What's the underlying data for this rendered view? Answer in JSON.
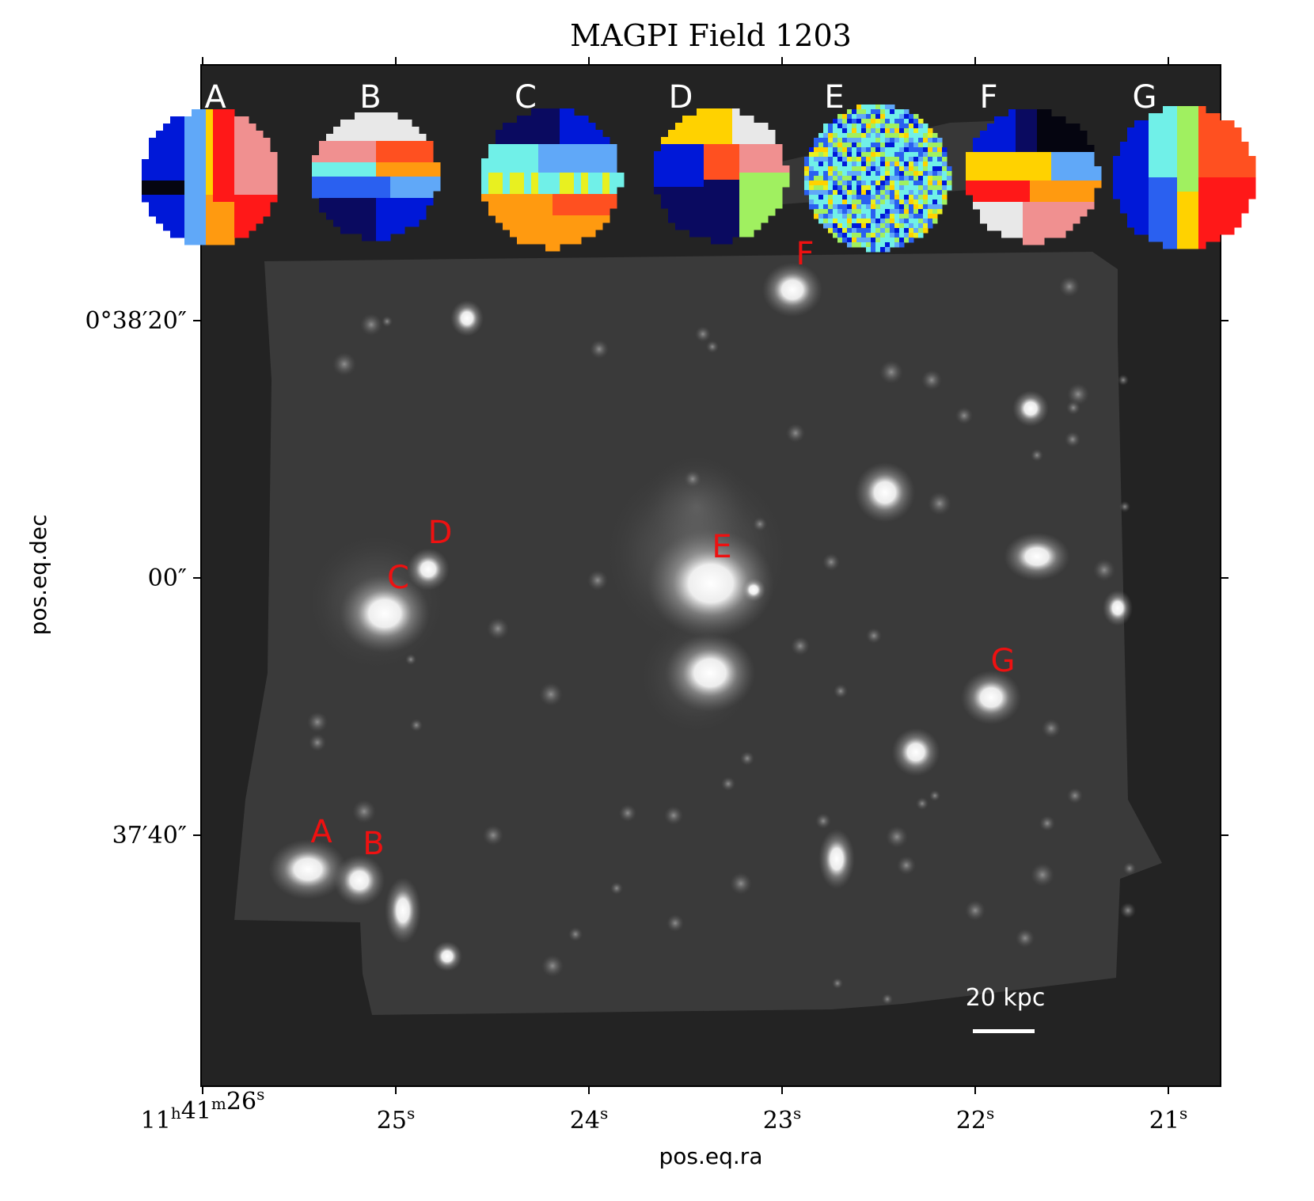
{
  "title": "MAGPI Field 1203",
  "xlabel": "pos.eq.ra",
  "ylabel": "pos.eq.dec",
  "ra_ticks": [
    {
      "main": "11",
      "h": "h",
      "m_val": "41",
      "m": "m",
      "s_val": "26",
      "s": "s"
    },
    {
      "s_val": "25",
      "s": "s"
    },
    {
      "s_val": "24",
      "s": "s"
    },
    {
      "s_val": "23",
      "s": "s"
    },
    {
      "s_val": "22",
      "s": "s"
    },
    {
      "s_val": "21",
      "s": "s"
    }
  ],
  "dec_ticks": [
    "0°38′20″",
    "00″",
    "37′40″"
  ],
  "scale_bar_label": "20 kpc",
  "galaxy_labels": [
    "A",
    "B",
    "C",
    "D",
    "E",
    "F",
    "G"
  ],
  "map_labels": [
    "A",
    "B",
    "C",
    "D",
    "E",
    "F",
    "G"
  ],
  "colors": {
    "frame_bg": "#232323",
    "label_red": "#ee1111",
    "map_label": "#ffffff",
    "scale_bar": "#ffffff"
  },
  "palette": [
    "#0018d8",
    "#0a0a60",
    "#2a60f0",
    "#60a8f8",
    "#70f0e8",
    "#a0f060",
    "#e8f020",
    "#ffd200",
    "#ff9a10",
    "#ff5020",
    "#ff1818",
    "#f09090",
    "#e8e8e8",
    "#050510"
  ]
}
